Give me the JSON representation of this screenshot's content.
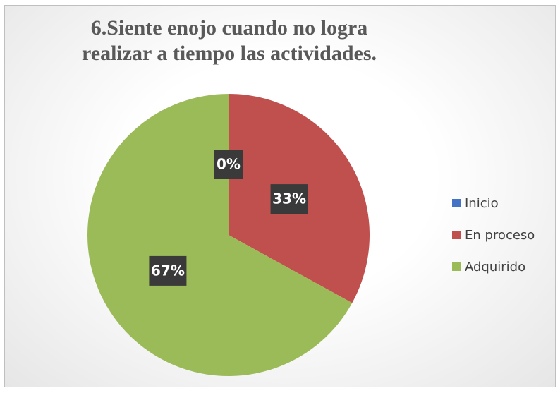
{
  "chart_data": {
    "type": "pie",
    "title": "6.Siente enojo cuando no logra realizar a tiempo las actividades.",
    "categories": [
      "Inicio",
      "En proceso",
      "Adquirido"
    ],
    "values": [
      0,
      33,
      67
    ],
    "value_labels": [
      "0%",
      "33%",
      "67%"
    ],
    "colors": [
      "#4472c4",
      "#c0504d",
      "#9bbb59"
    ],
    "legend": "right"
  }
}
